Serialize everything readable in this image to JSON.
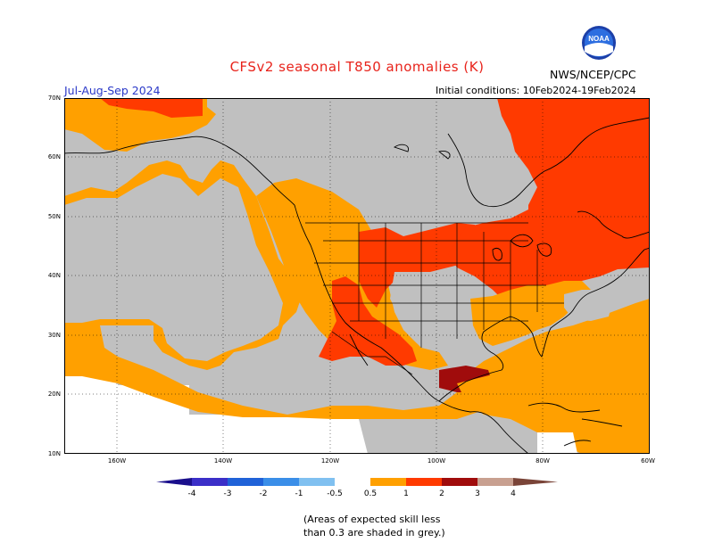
{
  "header": {
    "title": "CFSv2 seasonal T850 anomalies (K)",
    "period": "Jul-Aug-Sep 2024",
    "initial_conditions": "Initial conditions: 10Feb2024-19Feb2024",
    "agency": "NWS/NCEP/CPC",
    "logo_text": "NOAA"
  },
  "axes": {
    "lat_labels": [
      "70N",
      "60N",
      "50N",
      "40N",
      "30N",
      "20N",
      "10N"
    ],
    "lon_labels": [
      "160W",
      "140W",
      "120W",
      "100W",
      "80W",
      "60W"
    ]
  },
  "colorbar": {
    "labels": [
      "-4",
      "-3",
      "-2",
      "-1",
      "-0.5",
      "0.5",
      "1",
      "2",
      "3",
      "4"
    ],
    "colors": {
      "lt_minus4": "#1a0f8c",
      "m4_m3": "#3b2fc8",
      "m3_m2": "#2062d8",
      "m2_m1": "#3a8ee8",
      "m1_m05": "#80c0f0",
      "neutral": "#ffffff",
      "p05_p1": "#ffa000",
      "p1_p2": "#ff3a00",
      "p2_p3": "#a00c0c",
      "p3_p4": "#c8a090",
      "gt_p4": "#7a4438"
    }
  },
  "map_colors": {
    "grey": "#c0c0c0",
    "orange": "#ffa000",
    "red": "#ff3a00",
    "darkred": "#a00c0c",
    "white": "#ffffff"
  },
  "footnote": {
    "line1": "(Areas of expected skill less",
    "line2": "than 0.3 are shaded in grey.)"
  }
}
